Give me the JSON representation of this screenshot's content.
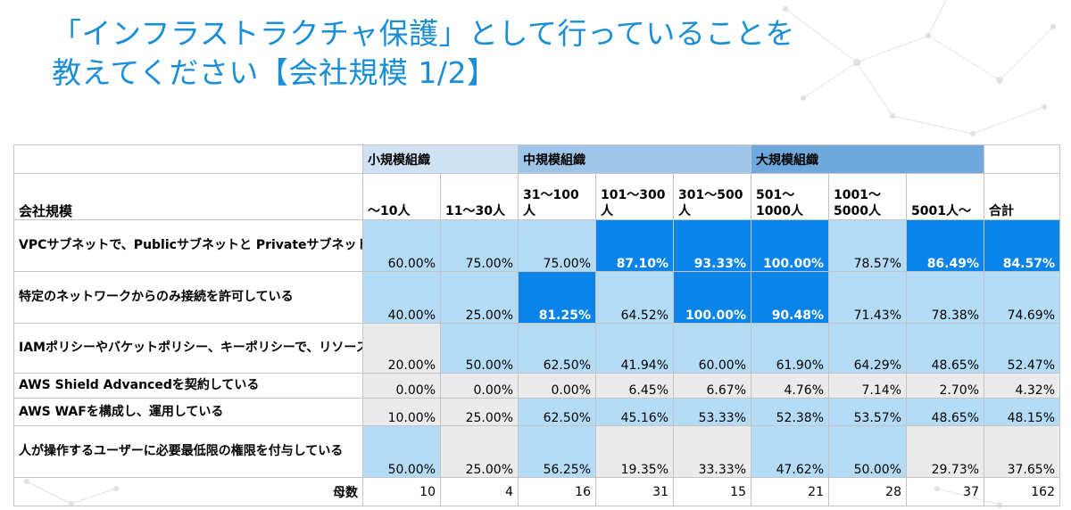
{
  "title": {
    "line1": "「インフラストラクチャ保護」として行っていることを",
    "line2": "教えてください【会社規模 1/2】"
  },
  "chart_data": {
    "type": "table",
    "groups": [
      {
        "label": "小規模組織",
        "span": 2,
        "color": "#cfe2f3"
      },
      {
        "label": "中規模組織",
        "span": 3,
        "color": "#9fc5e8"
      },
      {
        "label": "大規模組織",
        "span": 3,
        "color": "#6fa8dc"
      }
    ],
    "row_header_label": "会社規模",
    "columns": [
      [
        "～10人"
      ],
      [
        "11～30人"
      ],
      [
        "31～100",
        "人"
      ],
      [
        "101～300",
        "人"
      ],
      [
        "301～500",
        "人"
      ],
      [
        "501～",
        "1000人"
      ],
      [
        "1001～",
        "5000人"
      ],
      [
        "5001人～"
      ],
      [
        "合計"
      ]
    ],
    "rows": [
      {
        "label": "VPCサブネットで、Publicサブネットと Privateサブネットを使い分けている",
        "values": [
          "60.00%",
          "75.00%",
          "75.00%",
          "87.10%",
          "93.33%",
          "100.00%",
          "78.57%",
          "86.49%",
          "84.57%"
        ],
        "shades": [
          "light",
          "light",
          "light",
          "strong",
          "strong",
          "strong",
          "light",
          "strong",
          "strong"
        ]
      },
      {
        "label": "特定のネットワークからのみ接続を許可している",
        "values": [
          "40.00%",
          "25.00%",
          "81.25%",
          "64.52%",
          "100.00%",
          "90.48%",
          "71.43%",
          "78.38%",
          "74.69%"
        ],
        "shades": [
          "light",
          "light",
          "strong",
          "light",
          "strong",
          "strong",
          "light",
          "light",
          "light"
        ]
      },
      {
        "label": "IAMポリシーやバケットポリシー、キーポリシーで、リソースレベルでアクセス制御を行っている",
        "values": [
          "20.00%",
          "50.00%",
          "62.50%",
          "41.94%",
          "60.00%",
          "61.90%",
          "64.29%",
          "48.65%",
          "52.47%"
        ],
        "shades": [
          "grey",
          "light",
          "light",
          "light",
          "light",
          "light",
          "light",
          "light",
          "light"
        ]
      },
      {
        "label": "AWS Shield Advancedを契約している",
        "values": [
          "0.00%",
          "0.00%",
          "0.00%",
          "6.45%",
          "6.67%",
          "4.76%",
          "7.14%",
          "2.70%",
          "4.32%"
        ],
        "shades": [
          "grey",
          "grey",
          "grey",
          "grey",
          "grey",
          "grey",
          "grey",
          "grey",
          "grey"
        ]
      },
      {
        "label": "AWS WAFを構成し、運用している",
        "values": [
          "10.00%",
          "25.00%",
          "62.50%",
          "45.16%",
          "53.33%",
          "52.38%",
          "53.57%",
          "48.65%",
          "48.15%"
        ],
        "shades": [
          "grey",
          "grey",
          "light",
          "light",
          "light",
          "light",
          "light",
          "light",
          "light"
        ]
      },
      {
        "label": "人が操作するユーザーに必要最低限の権限を付与している",
        "values": [
          "50.00%",
          "25.00%",
          "56.25%",
          "19.35%",
          "33.33%",
          "47.62%",
          "50.00%",
          "29.73%",
          "37.65%"
        ],
        "shades": [
          "light",
          "grey",
          "light",
          "grey",
          "grey",
          "light",
          "light",
          "grey",
          "grey"
        ]
      }
    ],
    "base_label": "母数",
    "base_values": [
      "10",
      "4",
      "16",
      "31",
      "15",
      "21",
      "28",
      "37",
      "162"
    ]
  }
}
